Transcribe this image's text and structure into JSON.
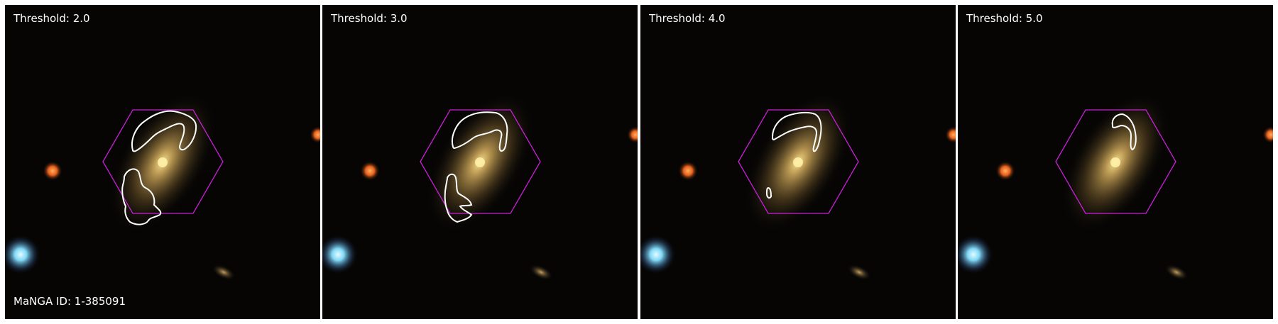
{
  "figure": {
    "manga_id_label": "MaNGA ID: 1-385091",
    "panels": [
      {
        "threshold_label": "Threshold: 2.0"
      },
      {
        "threshold_label": "Threshold: 3.0"
      },
      {
        "threshold_label": "Threshold: 4.0"
      },
      {
        "threshold_label": "Threshold: 5.0"
      }
    ]
  },
  "colors": {
    "background": "#060504",
    "galaxy_core": "#f3dc86",
    "galaxy_halo": "#9a7a3a",
    "orange_star": "#ff7a28",
    "blue_star": "#8fe3ff",
    "hexagon": "#c81fd8",
    "contour": "#ffffff"
  }
}
